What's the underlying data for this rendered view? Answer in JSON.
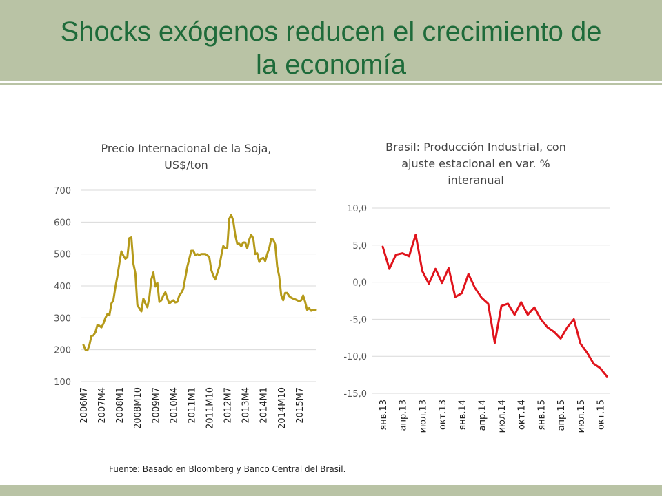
{
  "slide": {
    "title": "Shocks exógenos reducen el crecimiento de\nla economía",
    "source": "Fuente: Basado en Bloomberg y Banco Central del Brasil."
  },
  "colors": {
    "header_band": "#b9c3a5",
    "title": "#1e6b3a",
    "soy_line": "#b59a1a",
    "brazil_line": "#e0141c",
    "grid": "#d9d9d9"
  },
  "chart_data": [
    {
      "type": "line",
      "title": "Precio Internacional de la Soja,\nUS$/ton",
      "ylim": [
        100,
        700
      ],
      "yticks": [
        100,
        200,
        300,
        400,
        500,
        600,
        700
      ],
      "ytick_labels": [
        "100",
        "200",
        "300",
        "400",
        "500",
        "600",
        "700"
      ],
      "x_labels": [
        "2006M7",
        "2007M4",
        "2008M1",
        "2008M10",
        "2009M7",
        "2010M4",
        "2011M1",
        "2011M10",
        "2012M7",
        "2013M4",
        "2014M1",
        "2014M10",
        "2015M7"
      ],
      "x_label_step": 9,
      "grid": true,
      "series": [
        {
          "values": [
            215,
            200,
            198,
            215,
            243,
            245,
            255,
            278,
            275,
            270,
            282,
            300,
            312,
            308,
            345,
            355,
            395,
            430,
            470,
            508,
            495,
            485,
            490,
            550,
            552,
            470,
            440,
            340,
            330,
            320,
            360,
            345,
            333,
            365,
            420,
            442,
            398,
            410,
            350,
            355,
            370,
            380,
            360,
            345,
            350,
            355,
            348,
            350,
            370,
            378,
            390,
            425,
            460,
            485,
            510,
            510,
            497,
            500,
            497,
            500,
            500,
            500,
            496,
            490,
            450,
            432,
            420,
            440,
            460,
            495,
            525,
            518,
            520,
            610,
            622,
            605,
            560,
            532,
            532,
            524,
            536,
            536,
            518,
            545,
            560,
            550,
            500,
            502,
            475,
            485,
            488,
            478,
            500,
            518,
            547,
            545,
            530,
            460,
            430,
            370,
            355,
            378,
            378,
            368,
            363,
            360,
            358,
            355,
            352,
            355,
            370,
            350,
            325,
            330,
            322,
            325,
            325
          ]
        }
      ]
    },
    {
      "type": "line",
      "title": "Brasil: Producción Industrial, con\najuste estacional en var. %\ninteranual",
      "ylim": [
        -15,
        10
      ],
      "yticks": [
        10,
        5,
        0,
        -5,
        -10,
        -15
      ],
      "ytick_labels": [
        "10,0",
        "5,0",
        "0,0",
        "-5,0",
        "-10,0",
        "-15,0"
      ],
      "x_labels": [
        "янв.13",
        "апр.13",
        "июл.13",
        "окт.13",
        "янв.14",
        "апр.14",
        "июл.14",
        "окт.14",
        "янв.15",
        "апр.15",
        "июл.15",
        "окт.15"
      ],
      "x_label_step": 3,
      "grid": true,
      "series": [
        {
          "values": [
            4.8,
            1.8,
            3.7,
            3.9,
            3.5,
            6.4,
            1.5,
            -0.2,
            1.8,
            -0.1,
            1.9,
            -2.0,
            -1.5,
            1.1,
            -0.8,
            -2.1,
            -2.9,
            -8.2,
            -3.2,
            -2.9,
            -4.4,
            -2.7,
            -4.4,
            -3.4,
            -5.0,
            -6.1,
            -6.7,
            -7.6,
            -6.1,
            -5.0,
            -8.3,
            -9.5,
            -11.0,
            -11.6,
            -12.7
          ]
        }
      ]
    }
  ]
}
